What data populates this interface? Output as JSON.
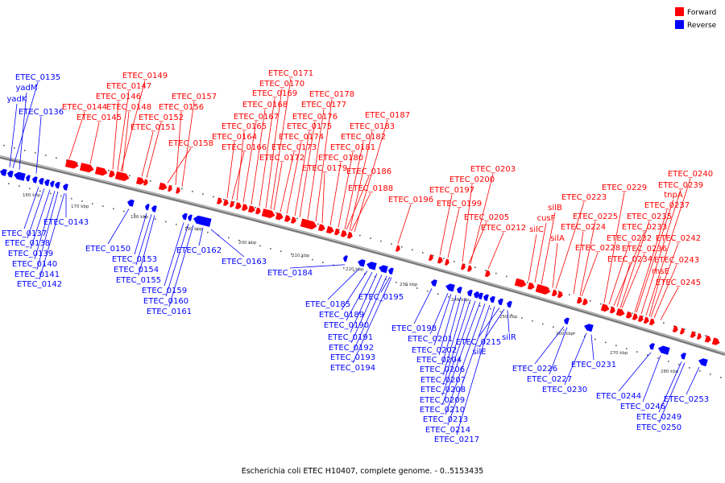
{
  "caption": "Escherichia coli ETEC H10407, complete genome. - 0..5153435",
  "legend": [
    {
      "label": "Forward",
      "color": "#ff0000"
    },
    {
      "label": "Reverse",
      "color": "#0000ff"
    }
  ],
  "colors": {
    "forward": "#ff0000",
    "reverse": "#0000ff",
    "backbone": "#7a7a7a"
  },
  "ticks": [
    "160 kbp",
    "170 kbp",
    "180 kbp",
    "190 kbp",
    "200 kbp",
    "210 kbp",
    "220 kbp",
    "230 kbp",
    "240 kbp",
    "250 kbp",
    "260 kbp",
    "270 kbp",
    "280 kbp"
  ],
  "genes": {
    "reverse": [
      "ETEC_0135",
      "yadM",
      "yadK",
      "ETEC_0136",
      "ETEC_0137",
      "ETEC_0138",
      "ETEC_0139",
      "ETEC_0140",
      "ETEC_0141",
      "ETEC_0142",
      "ETEC_0143",
      "ETEC_0150",
      "ETEC_0153",
      "ETEC_0154",
      "ETEC_0155",
      "ETEC_0159",
      "ETEC_0160",
      "ETEC_0161",
      "ETEC_0162",
      "ETEC_0163",
      "ETEC_0184",
      "ETEC_0185",
      "ETEC_0189",
      "ETEC_0190",
      "ETEC_0191",
      "ETEC_0192",
      "ETEC_0193",
      "ETEC_0194",
      "ETEC_0195",
      "ETEC_0198",
      "ETEC_0201",
      "ETEC_0202",
      "ETEC_0204",
      "ETEC_0206",
      "ETEC_0207",
      "ETEC_0208",
      "ETEC_0209",
      "ETEC_0210",
      "ETEC_0213",
      "ETEC_0214",
      "ETEC_0217",
      "ETEC_0215",
      "silE",
      "silR",
      "ETEC_0226",
      "ETEC_0227",
      "ETEC_0230",
      "ETEC_0231",
      "ETEC_0244",
      "ETEC_0246",
      "ETEC_0249",
      "ETEC_0250",
      "ETEC_0253"
    ],
    "forward": [
      "ETEC_0149",
      "ETEC_0147",
      "ETEC_0146",
      "ETEC_0144",
      "ETEC_0148",
      "ETEC_0145",
      "ETEC_0157",
      "ETEC_0156",
      "ETEC_0152",
      "ETEC_0151",
      "ETEC_0158",
      "ETEC_0171",
      "ETEC_0170",
      "ETEC_0169",
      "ETEC_0168",
      "ETEC_0167",
      "ETEC_0165",
      "ETEC_0164",
      "ETEC_0166",
      "ETEC_0178",
      "ETEC_0177",
      "ETEC_0176",
      "ETEC_0175",
      "ETEC_0174",
      "ETEC_0173",
      "ETEC_0172",
      "ETEC_0187",
      "ETEC_0183",
      "ETEC_0182",
      "ETEC_0181",
      "ETEC_0180",
      "ETEC_0179",
      "ETEC_0186",
      "ETEC_0188",
      "ETEC_0196",
      "ETEC_0203",
      "ETEC_0200",
      "ETEC_0197",
      "ETEC_0199",
      "ETEC_0205",
      "ETEC_0212",
      "ETEC_0223",
      "silB",
      "cusF",
      "silC",
      "silA",
      "ETEC_0225",
      "ETEC_0224",
      "ETEC_0228",
      "ETEC_0229",
      "ETEC_0235",
      "ETEC_0233",
      "ETEC_0232",
      "ETEC_0236",
      "ETEC_0234",
      "ETEC_0240",
      "ETEC_0239",
      "tnpA",
      "ETEC_0237",
      "ETEC_0242",
      "ETEC_0243",
      "rhsE",
      "ETEC_0245"
    ]
  }
}
